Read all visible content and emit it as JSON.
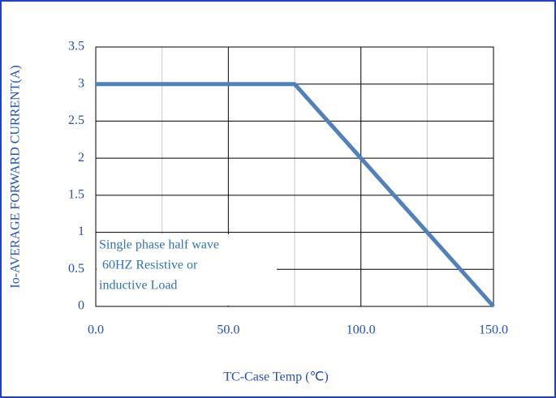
{
  "chart_data": {
    "type": "line",
    "x": [
      0,
      75,
      150
    ],
    "series": [
      {
        "name": "Io",
        "color": "#4f81bd",
        "values": [
          3,
          3,
          0
        ]
      }
    ],
    "xlim": [
      0,
      150
    ],
    "xticks": [
      {
        "value": 0,
        "label": "0.0"
      },
      {
        "value": 50,
        "label": "50.0"
      },
      {
        "value": 100,
        "label": "100.0"
      },
      {
        "value": 150,
        "label": "150.0"
      }
    ],
    "xminor": [
      25,
      75,
      125
    ],
    "ylim": [
      0,
      3.5
    ],
    "yticks": [
      0,
      0.5,
      1,
      1.5,
      2,
      2.5,
      3,
      3.5
    ],
    "xlabel": "TC-Case Temp (℃)",
    "ylabel": "Io-AVERAGE FORWARD CURRENT(A)",
    "annotation": [
      "Single phase half wave",
      " 60HZ Resistive or",
      "inductive Load"
    ],
    "grid": true
  }
}
